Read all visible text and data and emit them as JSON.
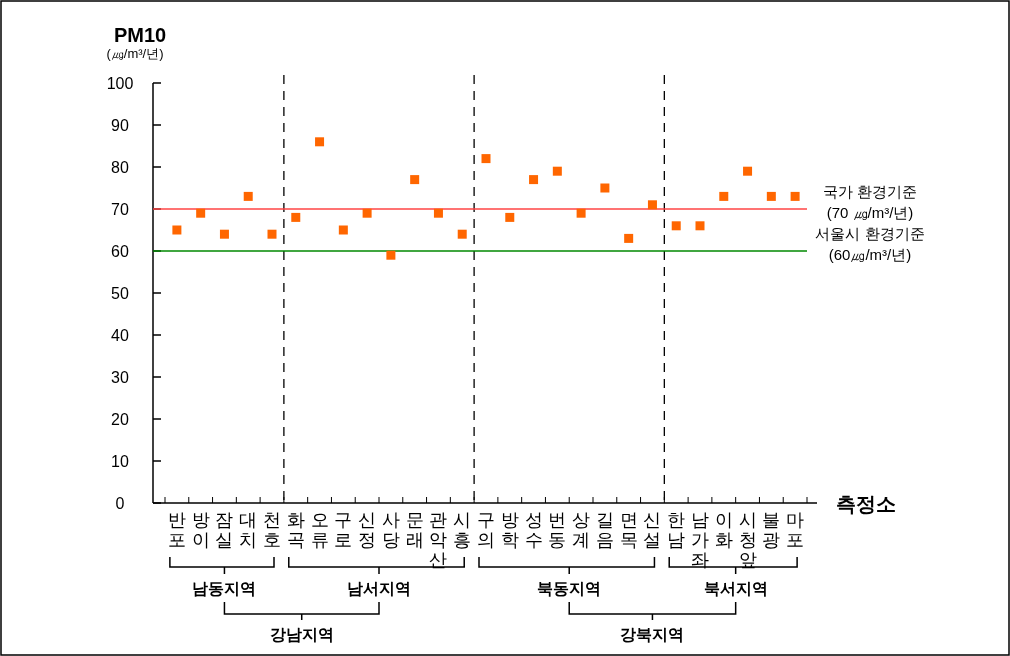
{
  "chart_data": {
    "type": "scatter",
    "ylabel": "PM10\n(㎍/m³/년)",
    "xlabel": "측정소",
    "categories": [
      "반포",
      "방이",
      "잠실",
      "대치",
      "천호",
      "화곡",
      "오류",
      "구로",
      "신정",
      "사당",
      "문래",
      "관악산",
      "시흥",
      "구의",
      "방학",
      "성수",
      "번동",
      "상계",
      "길음",
      "면목",
      "신설",
      "한남",
      "남가좌",
      "이화",
      "시청앞",
      "불광",
      "마포"
    ],
    "series": [
      {
        "color": "#ff6600",
        "values": [
          65,
          69,
          64,
          73,
          64,
          68,
          86,
          65,
          69,
          59,
          77,
          69,
          64,
          82,
          68,
          77,
          79,
          69,
          75,
          63,
          71,
          66,
          66,
          73,
          79,
          73,
          73
        ]
      }
    ],
    "ylim": [
      0,
      100
    ],
    "yticks": [
      0,
      10,
      20,
      30,
      40,
      50,
      60,
      70,
      80,
      90,
      100
    ],
    "marker": "square",
    "grid": false,
    "ref_lines": [
      {
        "axis": "y",
        "value": 70,
        "label": "국가 환경기준\n(70 ㎍/m³/년)",
        "color": "#ff4444"
      },
      {
        "axis": "y",
        "value": 60,
        "label": "서울시 환경기준\n(60㎍/m³/년)",
        "color": "#008800"
      }
    ],
    "annotations": [
      "남동지역",
      "남서지역",
      "북동지역",
      "북서지역",
      "강남지역",
      "강북지역"
    ]
  }
}
